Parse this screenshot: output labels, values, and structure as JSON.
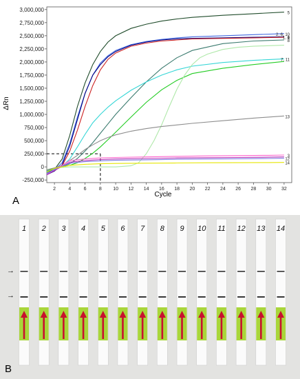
{
  "panels": {
    "a_label": "A",
    "b_label": "B"
  },
  "chart_data": {
    "type": "line",
    "xlabel": "Cycle",
    "ylabel": "ΔRn",
    "xlim": [
      1,
      33
    ],
    "ylim": [
      -300000,
      3050000
    ],
    "x_ticks": [
      2,
      4,
      6,
      8,
      10,
      12,
      14,
      16,
      18,
      20,
      22,
      24,
      26,
      28,
      30,
      32
    ],
    "y_ticks": [
      {
        "value": 3000000,
        "label": "3,000,000"
      },
      {
        "value": 2750000,
        "label": "2,750,000"
      },
      {
        "value": 2500000,
        "label": "2,500,000"
      },
      {
        "value": 2250000,
        "label": "2,250,000"
      },
      {
        "value": 2000000,
        "label": "2,000,000"
      },
      {
        "value": 1750000,
        "label": "1,750,000"
      },
      {
        "value": 1500000,
        "label": "1,500,000"
      },
      {
        "value": 1250000,
        "label": "1,250,000"
      },
      {
        "value": 1000000,
        "label": "1,000,000"
      },
      {
        "value": 750000,
        "label": "750,000"
      },
      {
        "value": 500000,
        "label": "500,000"
      },
      {
        "value": 250000,
        "label": "250,000"
      },
      {
        "value": 0,
        "label": "0"
      },
      {
        "value": -250000,
        "label": "-250,000"
      }
    ],
    "threshold": {
      "x": 8,
      "y": 250000
    },
    "grid": false,
    "series": [
      {
        "label": "5",
        "color": "#1f4b2a",
        "x": [
          1,
          2,
          3,
          4,
          5,
          6,
          7,
          8,
          9,
          10,
          12,
          14,
          16,
          18,
          20,
          24,
          28,
          32
        ],
        "y": [
          -100000,
          -50000,
          150000,
          600000,
          1150000,
          1600000,
          1950000,
          2200000,
          2380000,
          2500000,
          2640000,
          2720000,
          2780000,
          2820000,
          2850000,
          2890000,
          2920000,
          2950000
        ]
      },
      {
        "label": "2, 6, 10",
        "color": "#4169e1",
        "x": [
          1,
          2,
          3,
          4,
          5,
          6,
          7,
          8,
          9,
          10,
          12,
          14,
          16,
          18,
          20,
          24,
          28,
          32
        ],
        "y": [
          -120000,
          -60000,
          80000,
          450000,
          950000,
          1400000,
          1750000,
          1980000,
          2120000,
          2220000,
          2330000,
          2390000,
          2430000,
          2460000,
          2480000,
          2500000,
          2520000,
          2540000
        ]
      },
      {
        "label": "1, 9",
        "color": "#000080",
        "x": [
          1,
          2,
          3,
          4,
          5,
          6,
          7,
          8,
          9,
          10,
          12,
          14,
          16,
          18,
          20,
          24,
          28,
          32
        ],
        "y": [
          -150000,
          -80000,
          40000,
          400000,
          900000,
          1400000,
          1750000,
          1950000,
          2100000,
          2200000,
          2320000,
          2380000,
          2420000,
          2440000,
          2450000,
          2460000,
          2470000,
          2480000
        ]
      },
      {
        "label": "4",
        "color": "#cc2222",
        "x": [
          1,
          2,
          3,
          4,
          5,
          6,
          7,
          8,
          9,
          10,
          12,
          14,
          16,
          18,
          20,
          24,
          28,
          32
        ],
        "y": [
          -140000,
          -70000,
          20000,
          300000,
          700000,
          1150000,
          1550000,
          1850000,
          2050000,
          2170000,
          2300000,
          2360000,
          2400000,
          2420000,
          2440000,
          2450000,
          2460000,
          2470000
        ]
      },
      {
        "label": "8",
        "color": "#3a7a6e",
        "x": [
          1,
          2,
          3,
          4,
          5,
          6,
          7,
          8,
          9,
          10,
          12,
          14,
          16,
          18,
          20,
          24,
          28,
          32
        ],
        "y": [
          -80000,
          -40000,
          0,
          60000,
          160000,
          300000,
          460000,
          640000,
          820000,
          1000000,
          1320000,
          1620000,
          1880000,
          2080000,
          2220000,
          2350000,
          2400000,
          2420000
        ]
      },
      {
        "label": "7, 11",
        "color": "#33d6d6",
        "x": [
          1,
          2,
          3,
          4,
          5,
          6,
          7,
          8,
          9,
          10,
          12,
          14,
          16,
          18,
          20,
          24,
          28,
          32
        ],
        "y": [
          -90000,
          -40000,
          10000,
          150000,
          380000,
          620000,
          840000,
          1000000,
          1140000,
          1260000,
          1460000,
          1620000,
          1750000,
          1850000,
          1920000,
          1990000,
          2030000,
          2060000
        ]
      },
      {
        "label": "",
        "color": "#22cc22",
        "x": [
          1,
          2,
          3,
          4,
          5,
          6,
          7,
          8,
          9,
          10,
          12,
          14,
          16,
          18,
          20,
          24,
          28,
          32
        ],
        "y": [
          -60000,
          -30000,
          0,
          30000,
          80000,
          160000,
          260000,
          380000,
          520000,
          660000,
          950000,
          1230000,
          1470000,
          1650000,
          1780000,
          1880000,
          1950000,
          2010000
        ]
      },
      {
        "label": "",
        "color": "#aee8a8",
        "x": [
          1,
          2,
          4,
          6,
          8,
          10,
          12,
          13,
          14,
          15,
          16,
          17,
          18,
          19,
          20,
          21,
          22,
          24,
          26,
          28,
          30,
          32
        ],
        "y": [
          -50000,
          -20000,
          0,
          0,
          0,
          0,
          20000,
          80000,
          250000,
          500000,
          800000,
          1150000,
          1480000,
          1750000,
          1950000,
          2080000,
          2150000,
          2240000,
          2280000,
          2300000,
          2310000,
          2320000
        ]
      },
      {
        "label": "13",
        "color": "#8c8c8c",
        "x": [
          1,
          2,
          3,
          4,
          5,
          6,
          7,
          8,
          9,
          10,
          12,
          14,
          16,
          18,
          20,
          24,
          28,
          32
        ],
        "y": [
          -60000,
          -20000,
          30000,
          120000,
          220000,
          330000,
          420000,
          500000,
          560000,
          610000,
          680000,
          730000,
          770000,
          800000,
          830000,
          880000,
          930000,
          970000
        ]
      },
      {
        "label": "3",
        "color": "#ff66cc",
        "x": [
          1,
          2,
          4,
          6,
          8,
          10,
          14,
          18,
          22,
          26,
          30,
          32
        ],
        "y": [
          -140000,
          -60000,
          120000,
          150000,
          170000,
          180000,
          190000,
          200000,
          210000,
          215000,
          220000,
          225000
        ]
      },
      {
        "label": "",
        "color": "#b830b8",
        "x": [
          1,
          2,
          4,
          6,
          8,
          10,
          14,
          18,
          22,
          26,
          30,
          32
        ],
        "y": [
          -150000,
          -70000,
          90000,
          120000,
          140000,
          150000,
          160000,
          170000,
          175000,
          180000,
          185000,
          190000
        ]
      },
      {
        "label": "12",
        "color": "#7e7ee0",
        "x": [
          1,
          2,
          4,
          6,
          8,
          10,
          14,
          18,
          22,
          26,
          30,
          32
        ],
        "y": [
          -130000,
          -50000,
          70000,
          100000,
          115000,
          125000,
          135000,
          145000,
          150000,
          155000,
          160000,
          165000
        ]
      },
      {
        "label": "14",
        "color": "#e6e600",
        "x": [
          1,
          2,
          4,
          6,
          8,
          10,
          14,
          18,
          22,
          26,
          30,
          32
        ],
        "y": [
          -100000,
          -30000,
          30000,
          50000,
          60000,
          65000,
          70000,
          75000,
          78000,
          80000,
          82000,
          85000
        ]
      }
    ]
  },
  "strips": {
    "labels": [
      "1",
      "2",
      "3",
      "4",
      "5",
      "6",
      "7",
      "8",
      "9",
      "10",
      "11",
      "12",
      "13",
      "14"
    ],
    "test_line_present": [
      true,
      true,
      true,
      true,
      true,
      true,
      true,
      true,
      true,
      true,
      true,
      true,
      true,
      true
    ],
    "control_line_present": [
      true,
      true,
      true,
      true,
      true,
      true,
      true,
      true,
      true,
      true,
      true,
      true,
      true,
      true
    ],
    "arrow_markers": [
      "→",
      "→"
    ]
  }
}
